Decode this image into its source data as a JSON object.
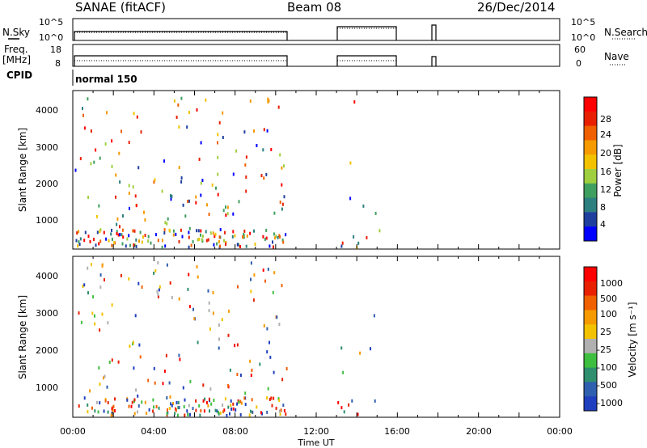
{
  "header": {
    "station": "SANAE (fitACF)",
    "beam": "Beam 08",
    "date": "26/Dec/2014"
  },
  "strip_noise": {
    "left_label": "N.Sky",
    "left_ticks": [
      "10^5",
      "10^0"
    ],
    "right_label": "N.Search",
    "right_ticks": [
      "10^5",
      "10^0"
    ]
  },
  "strip_freq": {
    "left_label_1": "Freq.",
    "left_label_2": "[MHz]",
    "left_ticks": [
      "18",
      "8"
    ],
    "right_label": "Nave",
    "right_ticks": [
      "60",
      "0"
    ]
  },
  "strip_cpid": {
    "label": "CPID",
    "program": "normal 150"
  },
  "colors": {
    "power_scale": [
      "#0000ff",
      "#1f3f9f",
      "#2e7f7f",
      "#3f9f5f",
      "#9fcf3f",
      "#f2c200",
      "#f59a00",
      "#f06000",
      "#e82000",
      "#ff0000"
    ],
    "velocity_scale": [
      "#1f3fbf",
      "#2f5faf",
      "#2f8f6f",
      "#3fbf3f",
      "#b0b0b0",
      "#f2c200",
      "#f59a00",
      "#f06000",
      "#e82000",
      "#ff0000"
    ]
  },
  "chart_data": [
    {
      "type": "heatmap",
      "panel": "power",
      "ylabel": "Slant Range [km]",
      "yticks": [
        "4000",
        "3000",
        "2000",
        "1000"
      ],
      "ylim": [
        200,
        4500
      ],
      "xlim": [
        "00:00",
        "24:00"
      ],
      "colorbar_label": "Power [dB]",
      "colorbar_ticks": [
        "28",
        "24",
        "20",
        "16",
        "12",
        "8",
        "4"
      ],
      "colorbar_range": [
        0,
        30
      ]
    },
    {
      "type": "heatmap",
      "panel": "velocity",
      "ylabel": "Slant Range [km]",
      "yticks": [
        "4000",
        "3000",
        "2000",
        "1000"
      ],
      "ylim": [
        200,
        4500
      ],
      "xlim": [
        "00:00",
        "24:00"
      ],
      "xticks": [
        "00:00",
        "04:00",
        "08:00",
        "12:00",
        "16:00",
        "20:00",
        "00:00"
      ],
      "xlabel": "Time UT",
      "colorbar_label": "Velocity [m s⁻¹]",
      "colorbar_ticks": [
        "1000",
        "500",
        "100",
        "25",
        "-25",
        "-100",
        "-500",
        "-1000"
      ]
    }
  ]
}
